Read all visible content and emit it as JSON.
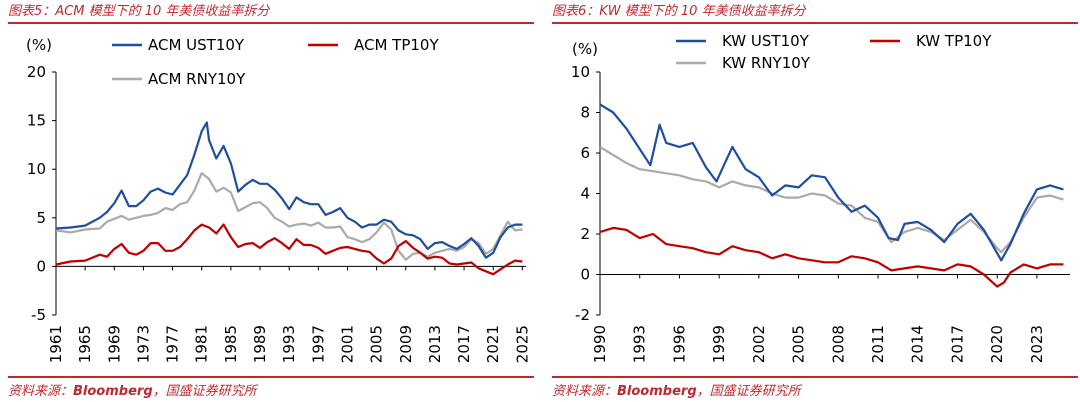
{
  "left_panel": {
    "caption": "图表5：ACM 模型下的 10 年美债收益率拆分",
    "source_prefix": "资料来源：",
    "source_brand": "Bloomberg",
    "source_suffix": "，国盛证券研究所"
  },
  "right_panel": {
    "caption": "图表6：KW 模型下的 10 年美债收益率拆分",
    "source_prefix": "资料来源：",
    "source_brand": "Bloomberg",
    "source_suffix": "，国盛证券研究所"
  },
  "colors": {
    "caption": "#c0282f",
    "ust": "#1f4e9e",
    "tp": "#c00000",
    "rny": "#aaaaaa"
  },
  "chart_data": [
    {
      "type": "line",
      "ylabel": "(%)",
      "ylim": [
        -5,
        20
      ],
      "yticks": [
        -5,
        0,
        5,
        10,
        15,
        20
      ],
      "xlim": [
        1961,
        2025.5
      ],
      "xticks": [
        "1961",
        "1965",
        "1969",
        "1973",
        "1977",
        "1981",
        "1985",
        "1989",
        "1993",
        "1997",
        "2001",
        "2005",
        "2009",
        "2013",
        "2017",
        "2021",
        "2025"
      ],
      "legend": [
        "ACM UST10Y",
        "ACM TP10Y",
        "ACM RNY10Y"
      ],
      "series": [
        {
          "name": "ACM UST10Y",
          "color_key": "ust",
          "x": [
            1961,
            1963,
            1965,
            1967,
            1968,
            1969,
            1970,
            1971,
            1972,
            1973,
            1974,
            1975,
            1976,
            1977,
            1978,
            1979,
            1980,
            1981,
            1981.7,
            1982,
            1983,
            1984,
            1985,
            1986,
            1987,
            1988,
            1989,
            1990,
            1991,
            1992,
            1993,
            1994,
            1995,
            1996,
            1997,
            1998,
            1999,
            2000,
            2001,
            2002,
            2003,
            2004,
            2005,
            2006,
            2007,
            2008,
            2009,
            2010,
            2011,
            2012,
            2013,
            2014,
            2015,
            2016,
            2017,
            2018,
            2019,
            2020,
            2021,
            2022,
            2023,
            2024,
            2025
          ],
          "y": [
            3.9,
            4.0,
            4.2,
            5.0,
            5.6,
            6.5,
            7.8,
            6.2,
            6.2,
            6.8,
            7.7,
            8.0,
            7.6,
            7.4,
            8.4,
            9.4,
            11.5,
            13.9,
            14.8,
            13.0,
            11.1,
            12.4,
            10.6,
            7.7,
            8.4,
            8.9,
            8.5,
            8.5,
            7.9,
            7.0,
            5.9,
            7.1,
            6.6,
            6.4,
            6.4,
            5.3,
            5.6,
            6.0,
            5.0,
            4.6,
            4.0,
            4.3,
            4.3,
            4.8,
            4.6,
            3.7,
            3.3,
            3.2,
            2.8,
            1.8,
            2.4,
            2.5,
            2.1,
            1.8,
            2.3,
            2.9,
            2.1,
            0.9,
            1.4,
            3.0,
            4.0,
            4.3,
            4.3
          ]
        },
        {
          "name": "ACM TP10Y",
          "color_key": "tp",
          "x": [
            1961,
            1963,
            1965,
            1967,
            1968,
            1969,
            1970,
            1971,
            1972,
            1973,
            1974,
            1975,
            1976,
            1977,
            1978,
            1979,
            1980,
            1981,
            1982,
            1983,
            1984,
            1985,
            1986,
            1987,
            1988,
            1989,
            1990,
            1991,
            1992,
            1993,
            1994,
            1995,
            1996,
            1997,
            1998,
            1999,
            2000,
            2001,
            2002,
            2003,
            2004,
            2005,
            2006,
            2007,
            2008,
            2009,
            2010,
            2011,
            2012,
            2013,
            2014,
            2015,
            2016,
            2017,
            2018,
            2019,
            2020,
            2021,
            2022,
            2023,
            2024,
            2025
          ],
          "y": [
            0.2,
            0.5,
            0.6,
            1.2,
            1.0,
            1.8,
            2.3,
            1.4,
            1.2,
            1.6,
            2.4,
            2.4,
            1.6,
            1.6,
            2.0,
            2.8,
            3.7,
            4.3,
            4.0,
            3.4,
            4.3,
            3.0,
            2.0,
            2.3,
            2.4,
            1.9,
            2.5,
            2.9,
            2.4,
            1.8,
            2.8,
            2.2,
            2.2,
            1.9,
            1.3,
            1.6,
            1.9,
            2.0,
            1.8,
            1.6,
            1.5,
            0.8,
            0.3,
            0.8,
            2.1,
            2.6,
            1.9,
            1.4,
            0.8,
            1.0,
            0.9,
            0.3,
            0.2,
            0.3,
            0.4,
            -0.2,
            -0.5,
            -0.8,
            -0.3,
            0.2,
            0.6,
            0.5
          ]
        },
        {
          "name": "ACM RNY10Y",
          "color_key": "rny",
          "x": [
            1961,
            1963,
            1965,
            1967,
            1968,
            1969,
            1970,
            1971,
            1972,
            1973,
            1974,
            1975,
            1976,
            1977,
            1978,
            1979,
            1980,
            1981,
            1982,
            1983,
            1984,
            1985,
            1986,
            1987,
            1988,
            1989,
            1990,
            1991,
            1992,
            1993,
            1994,
            1995,
            1996,
            1997,
            1998,
            1999,
            2000,
            2001,
            2002,
            2003,
            2004,
            2005,
            2006,
            2007,
            2008,
            2009,
            2010,
            2011,
            2012,
            2013,
            2014,
            2015,
            2016,
            2017,
            2018,
            2019,
            2020,
            2021,
            2022,
            2023,
            2024,
            2025
          ],
          "y": [
            3.7,
            3.5,
            3.8,
            3.9,
            4.6,
            4.9,
            5.2,
            4.8,
            5.0,
            5.2,
            5.3,
            5.5,
            6.0,
            5.8,
            6.4,
            6.6,
            7.8,
            9.6,
            9.0,
            7.7,
            8.1,
            7.6,
            5.7,
            6.1,
            6.5,
            6.6,
            6.0,
            5.0,
            4.6,
            4.1,
            4.3,
            4.4,
            4.2,
            4.5,
            4.0,
            4.0,
            4.1,
            3.0,
            2.8,
            2.5,
            2.8,
            3.5,
            4.5,
            3.8,
            1.6,
            0.7,
            1.3,
            1.4,
            1.0,
            1.4,
            1.6,
            1.8,
            1.6,
            2.0,
            2.8,
            2.4,
            1.3,
            1.8,
            3.2,
            4.6,
            3.7,
            3.8
          ]
        }
      ]
    },
    {
      "type": "line",
      "ylabel": "(%)",
      "ylim": [
        -2,
        10
      ],
      "yticks": [
        -2,
        0,
        2,
        4,
        6,
        8,
        10
      ],
      "xlim": [
        1990,
        2025.5
      ],
      "xticks": [
        "1990",
        "1993",
        "1996",
        "1999",
        "2002",
        "2005",
        "2008",
        "2011",
        "2014",
        "2017",
        "2020",
        "2023"
      ],
      "legend": [
        "KW UST10Y",
        "KW TP10Y",
        "KW RNY10Y"
      ],
      "series": [
        {
          "name": "KW UST10Y",
          "color_key": "ust",
          "x": [
            1990,
            1991,
            1992,
            1993,
            1993.8,
            1994.5,
            1995,
            1996,
            1997,
            1998,
            1998.8,
            1999.5,
            2000,
            2001,
            2002,
            2003,
            2004,
            2005,
            2006,
            2007,
            2008,
            2009,
            2010,
            2011,
            2011.8,
            2012.5,
            2013,
            2014,
            2015,
            2016,
            2017,
            2018,
            2019,
            2020.3,
            2021,
            2022,
            2023,
            2024,
            2025
          ],
          "y": [
            8.4,
            8.0,
            7.2,
            6.2,
            5.4,
            7.4,
            6.5,
            6.3,
            6.5,
            5.3,
            4.6,
            5.6,
            6.3,
            5.2,
            4.8,
            3.9,
            4.4,
            4.3,
            4.9,
            4.8,
            3.8,
            3.1,
            3.4,
            2.8,
            1.8,
            1.7,
            2.5,
            2.6,
            2.2,
            1.6,
            2.5,
            3.0,
            2.2,
            0.7,
            1.5,
            3.0,
            4.2,
            4.4,
            4.2
          ]
        },
        {
          "name": "KW TP10Y",
          "color_key": "tp",
          "x": [
            1990,
            1991,
            1992,
            1993,
            1994,
            1995,
            1996,
            1997,
            1998,
            1999,
            2000,
            2001,
            2002,
            2003,
            2004,
            2005,
            2006,
            2007,
            2008,
            2009,
            2010,
            2011,
            2012,
            2013,
            2014,
            2015,
            2016,
            2017,
            2018,
            2019,
            2020,
            2020.5,
            2021,
            2022,
            2023,
            2024,
            2025
          ],
          "y": [
            2.1,
            2.3,
            2.2,
            1.8,
            2.0,
            1.5,
            1.4,
            1.3,
            1.1,
            1.0,
            1.4,
            1.2,
            1.1,
            0.8,
            1.0,
            0.8,
            0.7,
            0.6,
            0.6,
            0.9,
            0.8,
            0.6,
            0.2,
            0.3,
            0.4,
            0.3,
            0.2,
            0.5,
            0.4,
            0.0,
            -0.6,
            -0.4,
            0.1,
            0.5,
            0.3,
            0.5,
            0.5
          ]
        },
        {
          "name": "KW RNY10Y",
          "color_key": "rny",
          "x": [
            1990,
            1991,
            1992,
            1993,
            1994,
            1995,
            1996,
            1997,
            1998,
            1999,
            2000,
            2001,
            2002,
            2003,
            2004,
            2005,
            2006,
            2007,
            2008,
            2009,
            2010,
            2011,
            2012,
            2013,
            2014,
            2015,
            2016,
            2017,
            2018,
            2019,
            2020,
            2020.3,
            2021,
            2022,
            2023,
            2024,
            2025
          ],
          "y": [
            6.3,
            5.9,
            5.5,
            5.2,
            5.1,
            5.0,
            4.9,
            4.7,
            4.6,
            4.3,
            4.6,
            4.4,
            4.3,
            4.0,
            3.8,
            3.8,
            4.0,
            3.9,
            3.5,
            3.4,
            2.8,
            2.6,
            1.6,
            2.1,
            2.3,
            2.1,
            1.7,
            2.2,
            2.7,
            2.1,
            1.3,
            1.1,
            1.6,
            2.8,
            3.8,
            3.9,
            3.7
          ]
        }
      ]
    }
  ]
}
